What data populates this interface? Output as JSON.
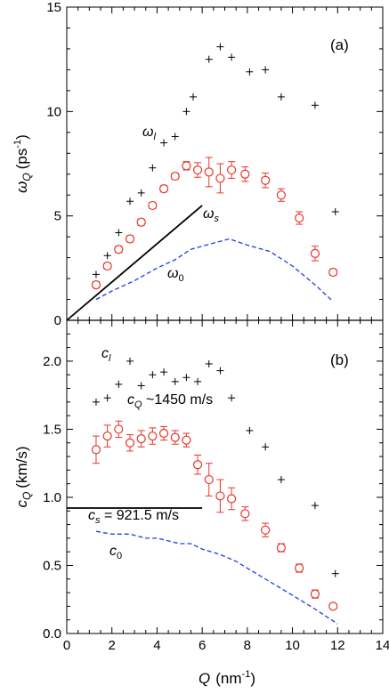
{
  "colors": {
    "omega_l": "#000000",
    "omega_Q": "#e8352b",
    "omega_s_line": "#000000",
    "omega_0": "#1f3fe0"
  },
  "chart_data": [
    {
      "type": "scatter",
      "panel_label": "(a)",
      "ylabel_main": "ω",
      "ylabel_sub": "Q",
      "ylabel_unit": "(ps",
      "ylabel_unit_exp": "-1",
      "ylabel_unit_close": ")",
      "xlim": [
        0,
        14
      ],
      "ylim": [
        0,
        15
      ],
      "yticks": [
        "0",
        "5",
        "10",
        "15"
      ],
      "annotations": {
        "l_main": "ω",
        "l_sub": "l",
        "s_main": "ω",
        "s_sub": "s",
        "z_main": "ω",
        "z_sub": "0"
      },
      "series": [
        {
          "key": "omega_l",
          "marker": "plus",
          "x": [
            1.3,
            1.8,
            2.3,
            2.8,
            3.3,
            3.8,
            4.3,
            4.8,
            5.3,
            5.6,
            6.3,
            6.8,
            7.3,
            8.1,
            8.8,
            9.5,
            11.0,
            11.9
          ],
          "y": [
            2.2,
            3.1,
            4.2,
            5.7,
            6.1,
            7.3,
            8.5,
            8.8,
            10.0,
            10.7,
            12.5,
            13.1,
            12.6,
            11.9,
            12.0,
            10.7,
            10.3,
            5.2
          ]
        },
        {
          "key": "omega_Q",
          "marker": "circle",
          "x": [
            1.3,
            1.8,
            2.3,
            2.8,
            3.3,
            3.8,
            4.3,
            4.8,
            5.3,
            5.8,
            6.3,
            6.8,
            7.3,
            7.9,
            8.8,
            9.5,
            10.3,
            11.0,
            11.8
          ],
          "y": [
            1.7,
            2.6,
            3.4,
            3.9,
            4.7,
            5.5,
            6.3,
            6.9,
            7.4,
            7.2,
            7.1,
            6.8,
            7.2,
            7.0,
            6.7,
            6.0,
            4.9,
            3.2,
            2.3
          ],
          "err": [
            0.15,
            0.15,
            0.15,
            0.15,
            0.15,
            0.15,
            0.15,
            0.15,
            0.2,
            0.35,
            0.7,
            0.7,
            0.4,
            0.35,
            0.35,
            0.3,
            0.3,
            0.35,
            0.15
          ]
        },
        {
          "key": "omega_s_line",
          "marker": "line",
          "x": [
            0,
            6.0
          ],
          "y": [
            0,
            5.5
          ]
        },
        {
          "key": "omega_0",
          "marker": "dashed",
          "x": [
            1.3,
            2.0,
            3.0,
            4.0,
            4.8,
            5.5,
            6.5,
            7.2,
            8.0,
            9.0,
            10.0,
            11.0,
            11.8
          ],
          "y": [
            1.0,
            1.4,
            1.9,
            2.5,
            2.9,
            3.4,
            3.7,
            3.9,
            3.6,
            3.3,
            2.6,
            1.7,
            0.9
          ]
        }
      ]
    },
    {
      "type": "scatter",
      "panel_label": "(b)",
      "ylabel_main": "c",
      "ylabel_sub": "Q",
      "ylabel_unit": "(km/s)",
      "xlabel_main": "Q",
      "xlabel_unit": "(nm",
      "xlabel_unit_exp": "-1",
      "xlabel_unit_close": ")",
      "xlim": [
        0,
        14
      ],
      "ylim": [
        0,
        2.3
      ],
      "xticks": [
        "0",
        "2",
        "4",
        "6",
        "8",
        "10",
        "12",
        "14"
      ],
      "yticks": [
        "0.0",
        "0.5",
        "1.0",
        "1.5",
        "2.0"
      ],
      "annotations": {
        "l_main": "c",
        "l_sub": "l",
        "q_main": "c",
        "q_sub": "Q",
        "q_text": " ~1450 m/s",
        "s_main": "c",
        "s_sub": "s",
        "s_text": " = 921.5 m/s",
        "z_main": "c",
        "z_sub": "0"
      },
      "series": [
        {
          "key": "c_l",
          "marker": "plus",
          "x": [
            1.3,
            1.8,
            2.3,
            2.8,
            3.3,
            3.8,
            4.3,
            4.8,
            5.3,
            5.8,
            6.3,
            6.8,
            7.3,
            8.1,
            8.8,
            9.5,
            11.0,
            11.9
          ],
          "y": [
            1.7,
            1.73,
            1.83,
            2.0,
            1.82,
            1.9,
            1.92,
            1.85,
            1.88,
            1.85,
            1.98,
            1.93,
            1.73,
            1.49,
            1.37,
            1.13,
            0.94,
            0.44
          ]
        },
        {
          "key": "c_Q",
          "marker": "circle",
          "x": [
            1.3,
            1.8,
            2.3,
            2.8,
            3.3,
            3.8,
            4.3,
            4.8,
            5.3,
            5.8,
            6.3,
            6.8,
            7.3,
            7.9,
            8.8,
            9.5,
            10.3,
            11.0,
            11.8
          ],
          "y": [
            1.35,
            1.45,
            1.5,
            1.4,
            1.43,
            1.45,
            1.47,
            1.44,
            1.42,
            1.24,
            1.13,
            1.01,
            0.99,
            0.88,
            0.76,
            0.63,
            0.48,
            0.29,
            0.2
          ],
          "err": [
            0.1,
            0.08,
            0.06,
            0.06,
            0.06,
            0.06,
            0.05,
            0.05,
            0.05,
            0.07,
            0.12,
            0.12,
            0.08,
            0.05,
            0.05,
            0.03,
            0.03,
            0.03,
            0.02
          ]
        },
        {
          "key": "c_s_line",
          "marker": "line",
          "x": [
            0,
            6.0
          ],
          "y": [
            0.9215,
            0.9215
          ]
        },
        {
          "key": "c_0",
          "marker": "dashed",
          "x": [
            1.3,
            2.0,
            2.8,
            3.5,
            4.0,
            4.5,
            5.0,
            5.5,
            6.0,
            6.8,
            7.5,
            8.2,
            9.0,
            10.0,
            11.0,
            12.0
          ],
          "y": [
            0.75,
            0.73,
            0.73,
            0.7,
            0.7,
            0.68,
            0.66,
            0.66,
            0.62,
            0.58,
            0.53,
            0.46,
            0.38,
            0.28,
            0.18,
            0.07
          ]
        }
      ]
    }
  ]
}
